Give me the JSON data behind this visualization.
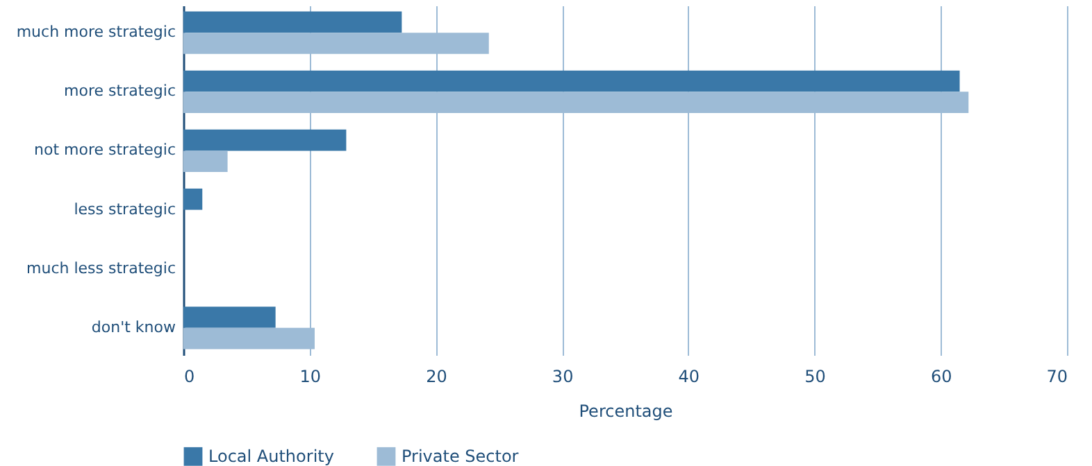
{
  "chart_data": {
    "type": "bar",
    "orientation": "horizontal",
    "xlabel": "Percentage",
    "categories": [
      "much more strategic",
      "more strategic",
      "not more strategic",
      "less strategic",
      "much less strategic",
      "don't know"
    ],
    "series": [
      {
        "name": "Local Authority",
        "color": "#3a78a8",
        "values": [
          17.3,
          61.5,
          12.9,
          1.5,
          0,
          7.3
        ]
      },
      {
        "name": "Private Sector",
        "color": "#9dbbd6",
        "values": [
          24.2,
          62.2,
          3.5,
          0,
          0,
          10.4
        ]
      }
    ],
    "xlim": [
      0,
      70
    ],
    "xticks": [
      0,
      10,
      20,
      30,
      40,
      50,
      60,
      70
    ],
    "grid": "x",
    "legend": "bottom"
  }
}
